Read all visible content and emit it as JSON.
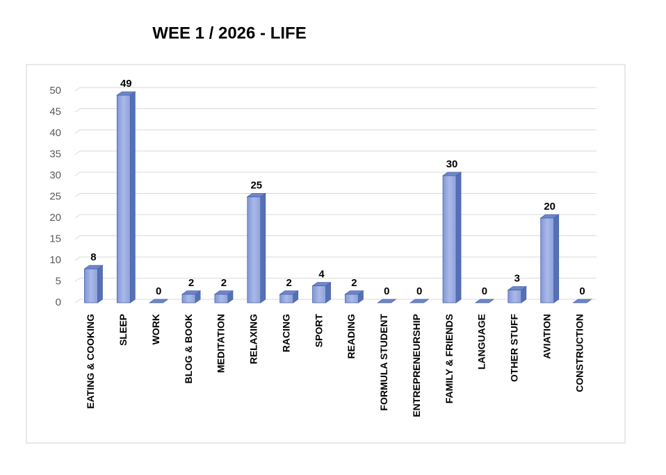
{
  "chart_data": {
    "type": "bar",
    "title": "WEE 1 / 2026 - LIFE",
    "categories": [
      "EATING & COOKING",
      "SLEEP",
      "WORK",
      "BLOG & BOOK",
      "MEDITATION",
      "RELAXING",
      "RACING",
      "SPORT",
      "READING",
      "FORMULA STUDENT",
      "ENTREPRENEURSHIP",
      "FAMILY & FRIENDS",
      "LANGUAGE",
      "OTHER STUFF",
      "AVIATION",
      "CONSTRUCTION"
    ],
    "values": [
      8,
      49,
      0,
      2,
      2,
      25,
      2,
      4,
      2,
      0,
      0,
      30,
      0,
      3,
      20,
      0
    ],
    "color": "#8fa3dd",
    "ylim": [
      0,
      50
    ],
    "yticks": [
      0,
      5,
      10,
      15,
      20,
      25,
      30,
      35,
      40,
      45,
      50
    ],
    "grid": true
  }
}
